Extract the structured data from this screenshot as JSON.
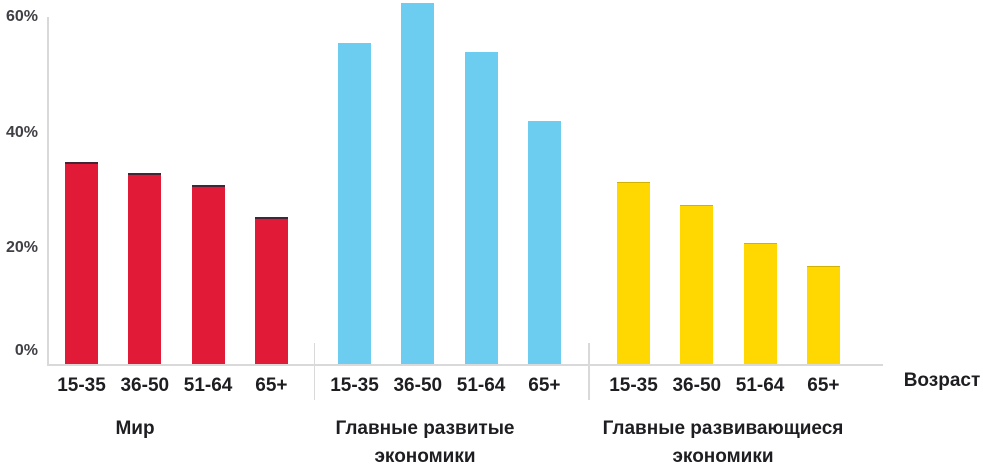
{
  "chart_data": {
    "type": "bar",
    "title": "",
    "xlabel": "Возраст",
    "ylabel": "",
    "ylim": [
      0,
      60
    ],
    "grid": false,
    "legend": "none",
    "background": "#ffffff",
    "axis_color": "#d9d9d9",
    "ytick_text_color": "#3f3f45",
    "xtick_text_color": "#1e1e22",
    "categories": [
      "15-35",
      "36-50",
      "51-64",
      "65+"
    ],
    "yticks": [
      {
        "label": "0%",
        "value": 0
      },
      {
        "label": "20%",
        "value": 20
      },
      {
        "label": "40%",
        "value": 40
      },
      {
        "label": "60%",
        "value": 60
      }
    ],
    "series": [
      {
        "name": "Мир",
        "name_lines": [
          "Мир"
        ],
        "color": "#e11a38",
        "values": [
          35,
          33,
          31,
          25.5
        ]
      },
      {
        "name": "Главные развитые экономики",
        "name_lines": [
          "Главные развитые",
          "экономики"
        ],
        "color": "#6dcdf0",
        "values": [
          55.5,
          62.5,
          54,
          42
        ]
      },
      {
        "name": "Главные развивающиеся экономики",
        "name_lines": [
          "Главные развивающиеся",
          "экономики"
        ],
        "color": "#ffd802",
        "values": [
          31.5,
          27.5,
          21,
          17
        ]
      }
    ]
  }
}
